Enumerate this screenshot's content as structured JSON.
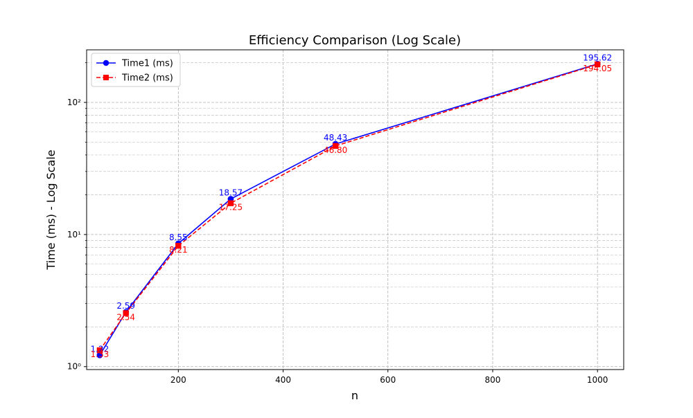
{
  "chart_data": {
    "type": "line",
    "title": "Efficiency Comparison (Log Scale)",
    "xlabel": "n",
    "ylabel": "Time (ms) - Log Scale",
    "yscale": "log",
    "grid": true,
    "legend_position": "top-left",
    "xlim": [
      25,
      1050
    ],
    "ylim": [
      0.95,
      250
    ],
    "x_ticks": [
      200,
      400,
      600,
      800,
      1000
    ],
    "x_tick_labels": [
      "200",
      "400",
      "600",
      "800",
      "1000"
    ],
    "y_major_ticks": [
      1,
      10,
      100
    ],
    "y_tick_labels": [
      "10⁰",
      "10¹",
      "10²"
    ],
    "x": [
      50,
      100,
      200,
      300,
      500,
      1000
    ],
    "series": [
      {
        "name": "Time1 (ms)",
        "color": "#0000ff",
        "marker": "circle",
        "line_style": "solid",
        "values": [
          1.22,
          2.59,
          8.55,
          18.57,
          48.43,
          195.62
        ],
        "labels": [
          "1.22",
          "2.59",
          "8.55",
          "18.57",
          "48.43",
          "195.62"
        ]
      },
      {
        "name": "Time2 (ms)",
        "color": "#ff0000",
        "marker": "square",
        "line_style": "dashed",
        "values": [
          1.33,
          2.54,
          8.21,
          17.25,
          46.8,
          194.05
        ],
        "labels": [
          "1.33",
          "2.54",
          "8.21",
          "17.25",
          "46.80",
          "194.05"
        ]
      }
    ]
  }
}
